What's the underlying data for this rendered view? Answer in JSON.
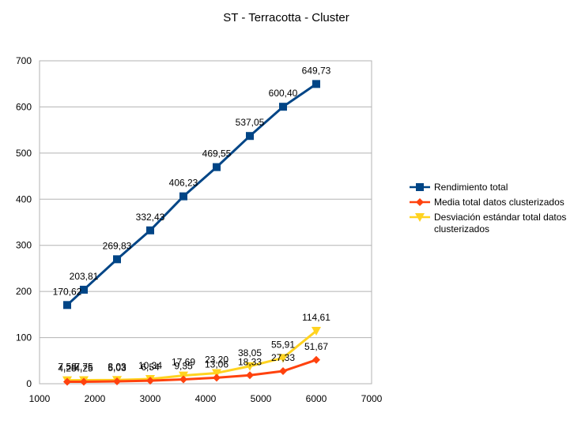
{
  "chart_data": {
    "type": "line",
    "title": "ST - Terracotta - Cluster",
    "xlabel": "",
    "ylabel": "",
    "xlim": [
      1000,
      7000
    ],
    "ylim": [
      0,
      700
    ],
    "x_ticks": [
      1000,
      2000,
      3000,
      4000,
      5000,
      6000,
      7000
    ],
    "y_ticks": [
      0,
      100,
      200,
      300,
      400,
      500,
      600,
      700
    ],
    "x_tick_labels": [
      "1000",
      "2000",
      "3000",
      "4000",
      "5000",
      "6000",
      "7000"
    ],
    "y_tick_labels": [
      "0",
      "100",
      "200",
      "300",
      "400",
      "500",
      "600",
      "700"
    ],
    "grid": {
      "x": false,
      "y": true
    },
    "legend_position": "right",
    "x": [
      1500,
      1800,
      2400,
      3000,
      3600,
      4200,
      4800,
      5400,
      6000
    ],
    "series": [
      {
        "name": "Rendimiento total",
        "legend_lines": [
          "Rendimiento total"
        ],
        "color": "#004586",
        "marker": "square",
        "values": [
          170.62,
          203.81,
          269.83,
          332.43,
          406.23,
          469.55,
          537.05,
          600.4,
          649.73
        ],
        "labels": [
          "170,62",
          "203,81",
          "269,83",
          "332,43",
          "406,23",
          "469,55",
          "537,05",
          "600,40",
          "649,73"
        ]
      },
      {
        "name": "Media total datos clusterizados",
        "legend_lines": [
          "Media total datos clusterizados"
        ],
        "color": "#ff420e",
        "marker": "diamond",
        "values": [
          4.28,
          4.25,
          5.03,
          6.54,
          9.35,
          13.06,
          18.33,
          27.33,
          51.67
        ],
        "labels": [
          "4,28",
          "4,25",
          "5,03",
          "6,54",
          "9,35",
          "13,06",
          "18,33",
          "27,33",
          "51,67"
        ]
      },
      {
        "name": "Desviación estándar total datos clusterizados",
        "legend_lines": [
          "Desviación estándar total datos",
          "clusterizados"
        ],
        "color": "#ffd320",
        "marker": "triangle-down",
        "values": [
          7.58,
          7.75,
          8.03,
          10.34,
          17.69,
          23.2,
          38.05,
          55.91,
          114.61
        ],
        "labels": [
          "7,58",
          "7,75",
          "8,03",
          "10,34",
          "17,69",
          "23,20",
          "38,05",
          "55,91",
          "114,61"
        ]
      }
    ]
  }
}
